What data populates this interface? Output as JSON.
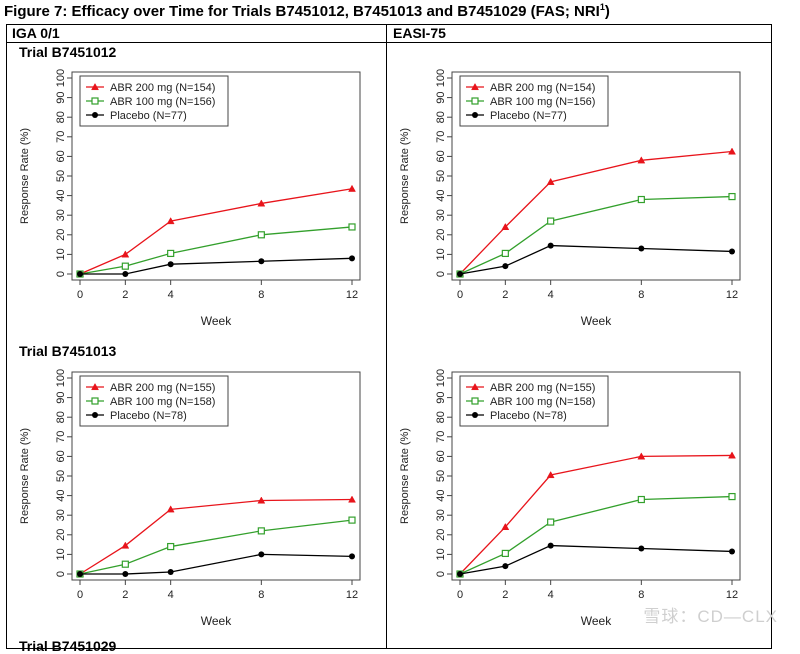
{
  "figure": {
    "title_main": "Figure 7: Efficacy over Time for Trials B7451012, B7451013 and B7451029 (FAS; NRI",
    "title_sup": "1",
    "title_end": ")"
  },
  "columns": {
    "left": "IGA 0/1",
    "right": "EASI-75"
  },
  "trials": [
    "Trial B7451012",
    "Trial B7451013",
    "Trial B7451029"
  ],
  "colors": {
    "abr200": "#e8141b",
    "abr100": "#33a02c",
    "placebo": "#000000"
  },
  "chart_data": [
    {
      "type": "line",
      "trial": "Trial B7451012",
      "endpoint": "IGA 0/1",
      "xlabel": "Week",
      "ylabel": "Response Rate (%)",
      "x": [
        0,
        2,
        4,
        8,
        12
      ],
      "xticks": [
        "0",
        "2",
        "4",
        "8",
        "12"
      ],
      "yticks": [
        "0",
        "10",
        "20",
        "30",
        "40",
        "50",
        "60",
        "70",
        "80",
        "90",
        "100"
      ],
      "ylim": [
        0,
        100
      ],
      "legend_position": "top-left",
      "series": [
        {
          "name": "ABR 200 mg (N=154)",
          "key": "abr200",
          "values": [
            0,
            10,
            27,
            36,
            43.5
          ]
        },
        {
          "name": "ABR 100 mg (N=156)",
          "key": "abr100",
          "values": [
            0,
            4,
            10.5,
            20,
            24
          ]
        },
        {
          "name": "Placebo (N=77)",
          "key": "placebo",
          "values": [
            0,
            0,
            5,
            6.5,
            8
          ]
        }
      ]
    },
    {
      "type": "line",
      "trial": "Trial B7451012",
      "endpoint": "EASI-75",
      "xlabel": "Week",
      "ylabel": "Response Rate (%)",
      "x": [
        0,
        2,
        4,
        8,
        12
      ],
      "xticks": [
        "0",
        "2",
        "4",
        "8",
        "12"
      ],
      "yticks": [
        "0",
        "10",
        "20",
        "30",
        "40",
        "50",
        "60",
        "70",
        "80",
        "90",
        "100"
      ],
      "ylim": [
        0,
        100
      ],
      "legend_position": "top-left",
      "series": [
        {
          "name": "ABR 200 mg (N=154)",
          "key": "abr200",
          "values": [
            0,
            24,
            47,
            58,
            62.5
          ]
        },
        {
          "name": "ABR 100 mg (N=156)",
          "key": "abr100",
          "values": [
            0,
            10.5,
            27,
            38,
            39.5
          ]
        },
        {
          "name": "Placebo (N=77)",
          "key": "placebo",
          "values": [
            0,
            4,
            14.5,
            13,
            11.5
          ]
        }
      ]
    },
    {
      "type": "line",
      "trial": "Trial B7451013",
      "endpoint": "IGA 0/1",
      "xlabel": "Week",
      "ylabel": "Response Rate (%)",
      "x": [
        0,
        2,
        4,
        8,
        12
      ],
      "xticks": [
        "0",
        "2",
        "4",
        "8",
        "12"
      ],
      "yticks": [
        "0",
        "10",
        "20",
        "30",
        "40",
        "50",
        "60",
        "70",
        "80",
        "90",
        "100"
      ],
      "ylim": [
        0,
        100
      ],
      "legend_position": "top-left",
      "series": [
        {
          "name": "ABR 200 mg (N=155)",
          "key": "abr200",
          "values": [
            0,
            14.5,
            33,
            37.5,
            38
          ]
        },
        {
          "name": "ABR 100 mg (N=158)",
          "key": "abr100",
          "values": [
            0,
            5,
            14,
            22,
            27.5
          ]
        },
        {
          "name": "Placebo (N=78)",
          "key": "placebo",
          "values": [
            0,
            0,
            1,
            10,
            9
          ]
        }
      ]
    },
    {
      "type": "line",
      "trial": "Trial B7451013",
      "endpoint": "EASI-75",
      "xlabel": "Week",
      "ylabel": "Response Rate (%)",
      "x": [
        0,
        2,
        4,
        8,
        12
      ],
      "xticks": [
        "0",
        "2",
        "4",
        "8",
        "12"
      ],
      "yticks": [
        "0",
        "10",
        "20",
        "30",
        "40",
        "50",
        "60",
        "70",
        "80",
        "90",
        "100"
      ],
      "ylim": [
        0,
        100
      ],
      "legend_position": "top-left",
      "series": [
        {
          "name": "ABR 200 mg (N=155)",
          "key": "abr200",
          "values": [
            0,
            24,
            50.5,
            60,
            60.5
          ]
        },
        {
          "name": "ABR 100 mg (N=158)",
          "key": "abr100",
          "values": [
            0,
            10.5,
            26.5,
            38,
            39.5
          ]
        },
        {
          "name": "Placebo (N=78)",
          "key": "placebo",
          "values": [
            0,
            4,
            14.5,
            13,
            11.5
          ]
        }
      ]
    }
  ],
  "watermark": "雪球：CD—CLX"
}
